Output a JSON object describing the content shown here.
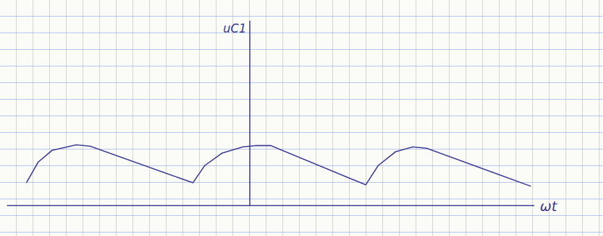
{
  "chart_data": {
    "type": "line",
    "x_label": "ωt",
    "y_label": "uC1",
    "x": [
      -32.2,
      -30.5,
      -28.5,
      -25,
      -23,
      -8.2,
      -6.5,
      -4,
      -1,
      1,
      3,
      16.7,
      18.5,
      21,
      23.5,
      25.5,
      40.5
    ],
    "values": [
      3.3,
      6.3,
      8.0,
      8.8,
      8.6,
      3.3,
      5.8,
      7.6,
      8.5,
      8.7,
      8.7,
      3.0,
      5.8,
      7.8,
      8.5,
      8.3,
      2.8
    ],
    "xlim": [
      -35,
      41
    ],
    "ylim": [
      0,
      26.8
    ],
    "tick_labels": false,
    "color": "#3b3a94"
  }
}
